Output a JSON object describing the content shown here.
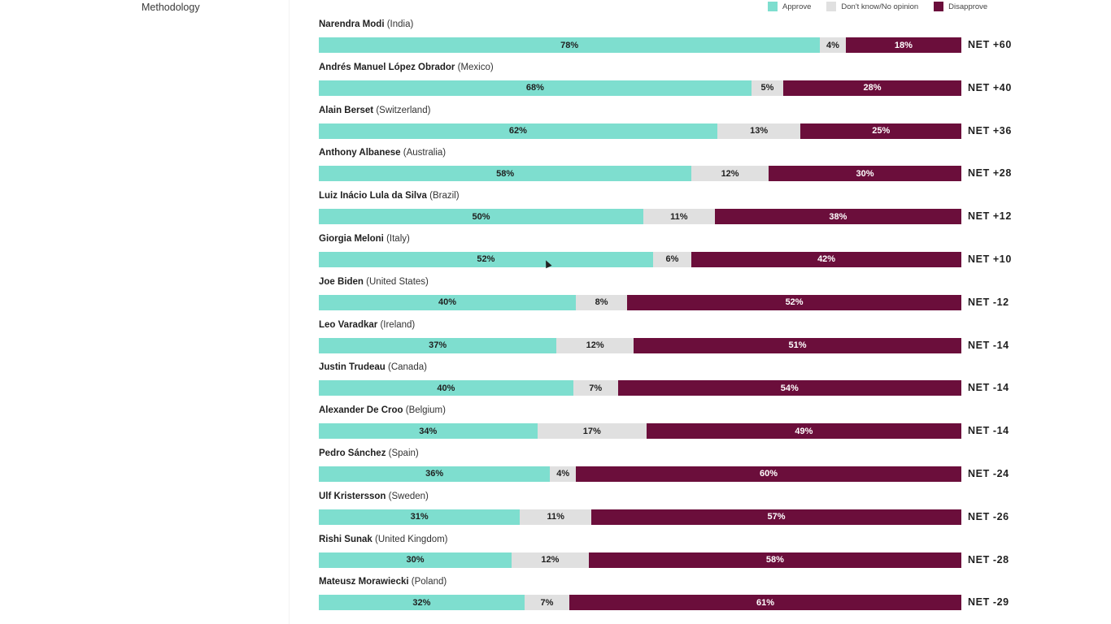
{
  "sidebar": {
    "link_label": "Methodology"
  },
  "legend": [
    {
      "label": "Approve",
      "color": "#7edecf"
    },
    {
      "label": "Don't know/No opinion",
      "color": "#e0e0e0"
    },
    {
      "label": "Disapprove",
      "color": "#6b0e3b"
    }
  ],
  "chart_data": {
    "type": "bar",
    "orientation": "horizontal",
    "stacked": true,
    "series_keys": [
      "approve",
      "dont_know",
      "disapprove"
    ],
    "rows": [
      {
        "leader": "Narendra Modi",
        "country": "(India)",
        "approve": 78,
        "dont_know": 4,
        "disapprove": 18,
        "net": "NET +60"
      },
      {
        "leader": "Andrés Manuel López Obrador",
        "country": "(Mexico)",
        "approve": 68,
        "dont_know": 5,
        "disapprove": 28,
        "net": "NET +40"
      },
      {
        "leader": "Alain Berset",
        "country": "(Switzerland)",
        "approve": 62,
        "dont_know": 13,
        "disapprove": 25,
        "net": "NET +36"
      },
      {
        "leader": "Anthony Albanese",
        "country": "(Australia)",
        "approve": 58,
        "dont_know": 12,
        "disapprove": 30,
        "net": "NET +28"
      },
      {
        "leader": "Luiz Inácio Lula da Silva",
        "country": "(Brazil)",
        "approve": 50,
        "dont_know": 11,
        "disapprove": 38,
        "net": "NET +12"
      },
      {
        "leader": "Giorgia Meloni",
        "country": "(Italy)",
        "approve": 52,
        "dont_know": 6,
        "disapprove": 42,
        "net": "NET +10"
      },
      {
        "leader": "Joe Biden",
        "country": "(United States)",
        "approve": 40,
        "dont_know": 8,
        "disapprove": 52,
        "net": "NET -12"
      },
      {
        "leader": "Leo Varadkar",
        "country": "(Ireland)",
        "approve": 37,
        "dont_know": 12,
        "disapprove": 51,
        "net": "NET -14"
      },
      {
        "leader": "Justin Trudeau",
        "country": "(Canada)",
        "approve": 40,
        "dont_know": 7,
        "disapprove": 54,
        "net": "NET -14"
      },
      {
        "leader": "Alexander De Croo",
        "country": "(Belgium)",
        "approve": 34,
        "dont_know": 17,
        "disapprove": 49,
        "net": "NET -14"
      },
      {
        "leader": "Pedro Sánchez",
        "country": "(Spain)",
        "approve": 36,
        "dont_know": 4,
        "disapprove": 60,
        "net": "NET -24"
      },
      {
        "leader": "Ulf Kristersson",
        "country": "(Sweden)",
        "approve": 31,
        "dont_know": 11,
        "disapprove": 57,
        "net": "NET -26"
      },
      {
        "leader": "Rishi Sunak",
        "country": "(United Kingdom)",
        "approve": 30,
        "dont_know": 12,
        "disapprove": 58,
        "net": "NET -28"
      },
      {
        "leader": "Mateusz Morawiecki",
        "country": "(Poland)",
        "approve": 32,
        "dont_know": 7,
        "disapprove": 61,
        "net": "NET -29"
      }
    ]
  }
}
